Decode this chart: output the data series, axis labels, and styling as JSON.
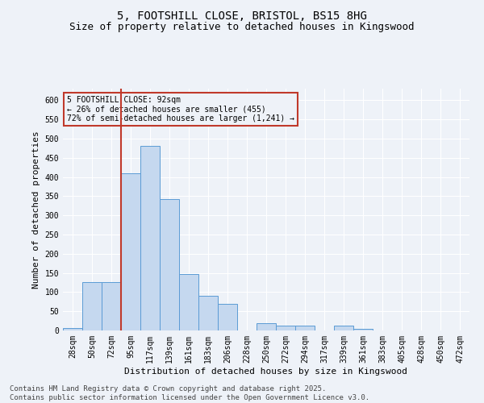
{
  "title_line1": "5, FOOTSHILL CLOSE, BRISTOL, BS15 8HG",
  "title_line2": "Size of property relative to detached houses in Kingswood",
  "xlabel": "Distribution of detached houses by size in Kingswood",
  "ylabel": "Number of detached properties",
  "categories": [
    "28sqm",
    "50sqm",
    "72sqm",
    "95sqm",
    "117sqm",
    "139sqm",
    "161sqm",
    "183sqm",
    "206sqm",
    "228sqm",
    "250sqm",
    "272sqm",
    "294sqm",
    "317sqm",
    "339sqm",
    "361sqm",
    "383sqm",
    "405sqm",
    "428sqm",
    "450sqm",
    "472sqm"
  ],
  "values": [
    7,
    127,
    127,
    410,
    480,
    342,
    148,
    91,
    70,
    0,
    18,
    13,
    12,
    0,
    13,
    5,
    0,
    0,
    0,
    0,
    0
  ],
  "bar_color": "#c5d8ef",
  "bar_edge_color": "#5b9bd5",
  "vline_x_index": 3,
  "vline_color": "#c0392b",
  "annotation_box_text": "5 FOOTSHILL CLOSE: 92sqm\n← 26% of detached houses are smaller (455)\n72% of semi-detached houses are larger (1,241) →",
  "box_edge_color": "#c0392b",
  "ylim": [
    0,
    630
  ],
  "yticks": [
    0,
    50,
    100,
    150,
    200,
    250,
    300,
    350,
    400,
    450,
    500,
    550,
    600
  ],
  "footnote": "Contains HM Land Registry data © Crown copyright and database right 2025.\nContains public sector information licensed under the Open Government Licence v3.0.",
  "background_color": "#eef2f8",
  "grid_color": "#ffffff",
  "title_fontsize": 10,
  "subtitle_fontsize": 9,
  "axis_label_fontsize": 8,
  "tick_fontsize": 7,
  "footnote_fontsize": 6.5
}
